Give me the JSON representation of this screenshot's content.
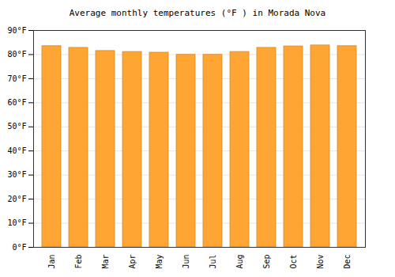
{
  "chart_data": {
    "type": "bar",
    "title": "Average monthly temperatures (°F ) in Morada Nova",
    "categories": [
      "Jan",
      "Feb",
      "Mar",
      "Apr",
      "May",
      "Jun",
      "Jul",
      "Aug",
      "Sep",
      "Oct",
      "Nov",
      "Dec"
    ],
    "values": [
      83.5,
      82.8,
      81.5,
      81.1,
      80.8,
      79.9,
      79.9,
      81.1,
      82.8,
      83.4,
      83.8,
      83.5
    ],
    "color": "#ffa533",
    "ylim": [
      0,
      90
    ],
    "yticks": [
      {
        "value": 0,
        "label": "0°F"
      },
      {
        "value": 10,
        "label": "10°F"
      },
      {
        "value": 20,
        "label": "20°F"
      },
      {
        "value": 30,
        "label": "30°F"
      },
      {
        "value": 40,
        "label": "40°F"
      },
      {
        "value": 50,
        "label": "50°F"
      },
      {
        "value": 60,
        "label": "60°F"
      },
      {
        "value": 70,
        "label": "70°F"
      },
      {
        "value": 80,
        "label": "80°F"
      },
      {
        "value": 90,
        "label": "90°F"
      }
    ],
    "grid": true
  }
}
